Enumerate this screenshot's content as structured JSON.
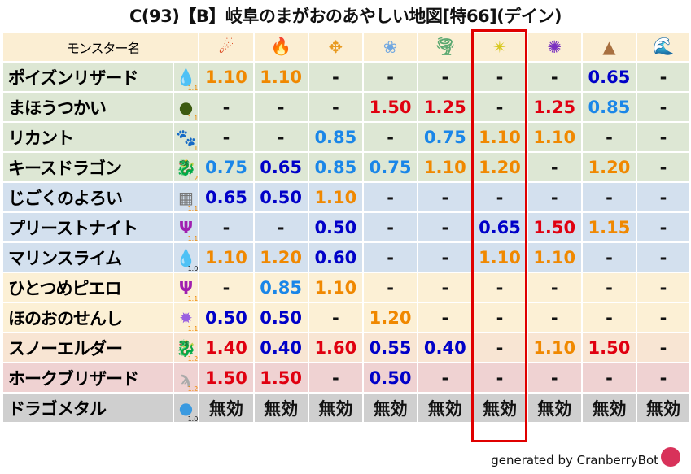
{
  "title": "C(93)【B】岐阜のまがおのあやしい地図[特66](デイン)",
  "header": {
    "name_label": "モンスター名",
    "element_icons": [
      "fireball-icon",
      "flame-icon",
      "clover-explosion-icon",
      "snowflake-icon",
      "tornado-icon",
      "light-star-icon",
      "dark-pinwheel-icon",
      "mountain-icon",
      "water-wave-icon"
    ]
  },
  "highlight_column": 5,
  "rows": [
    {
      "name": "ポイズンリザード",
      "icon": "water-drop-icon",
      "ver": "1.1",
      "group": 1,
      "values": [
        "1.10",
        "1.10",
        "-",
        "-",
        "-",
        "-",
        "-",
        "0.65",
        "-"
      ]
    },
    {
      "name": "まほうつかい",
      "icon": "hooded-ghost-icon",
      "ver": "1.1",
      "group": 1,
      "values": [
        "-",
        "-",
        "-",
        "1.50",
        "1.25",
        "-",
        "1.25",
        "0.85",
        "-"
      ]
    },
    {
      "name": "リカント",
      "icon": "paw-icon",
      "ver": "1.1",
      "group": 1,
      "values": [
        "-",
        "-",
        "0.85",
        "-",
        "0.75",
        "1.10",
        "1.10",
        "-",
        "-"
      ]
    },
    {
      "name": "キースドラゴン",
      "icon": "dragon-icon",
      "ver": "1.2",
      "group": 1,
      "values": [
        "0.75",
        "0.65",
        "0.85",
        "0.75",
        "1.10",
        "1.20",
        "-",
        "1.20",
        "-"
      ]
    },
    {
      "name": "じごくのよろい",
      "icon": "brick-wall-icon",
      "ver": "1.1",
      "group": 2,
      "values": [
        "0.65",
        "0.50",
        "1.10",
        "-",
        "-",
        "-",
        "-",
        "-",
        "-"
      ]
    },
    {
      "name": "プリーストナイト",
      "icon": "trident-icon",
      "ver": "1.1",
      "group": 2,
      "values": [
        "-",
        "-",
        "0.50",
        "-",
        "-",
        "0.65",
        "1.50",
        "1.15",
        "-"
      ]
    },
    {
      "name": "マリンスライム",
      "icon": "water-drop-icon",
      "ver": "1.0",
      "group": 2,
      "values": [
        "1.10",
        "1.20",
        "0.60",
        "-",
        "-",
        "1.10",
        "1.10",
        "-",
        "-"
      ]
    },
    {
      "name": "ひとつめピエロ",
      "icon": "trident-icon",
      "ver": "1.1",
      "group": 3,
      "values": [
        "-",
        "0.85",
        "1.10",
        "-",
        "-",
        "-",
        "-",
        "-",
        "-"
      ]
    },
    {
      "name": "ほのおのせんし",
      "icon": "purple-spirit-icon",
      "ver": "1.1",
      "group": 3,
      "values": [
        "0.50",
        "0.50",
        "-",
        "1.20",
        "-",
        "-",
        "-",
        "-",
        "-"
      ]
    },
    {
      "name": "スノーエルダー",
      "icon": "dragon-icon",
      "ver": "1.2",
      "group": 4,
      "values": [
        "1.40",
        "0.40",
        "1.60",
        "0.55",
        "0.40",
        "-",
        "1.10",
        "1.50",
        "-"
      ]
    },
    {
      "name": "ホークブリザード",
      "icon": "wing-icon",
      "ver": "1.2",
      "group": 5,
      "values": [
        "1.50",
        "1.50",
        "-",
        "0.50",
        "-",
        "-",
        "-",
        "-",
        "-"
      ]
    },
    {
      "name": "ドラゴメタル",
      "icon": "slime-icon",
      "ver": "1.0",
      "group": 6,
      "values": [
        "無効",
        "無効",
        "無効",
        "無効",
        "無効",
        "無効",
        "無効",
        "無効",
        "無効"
      ]
    }
  ],
  "colors": {
    "orange": "#f08800",
    "red": "#e00010",
    "light_blue": "#1a86e8",
    "dark_blue": "#0000c8",
    "highlight": "#e00000"
  },
  "footer": "generated by CranberryBot"
}
